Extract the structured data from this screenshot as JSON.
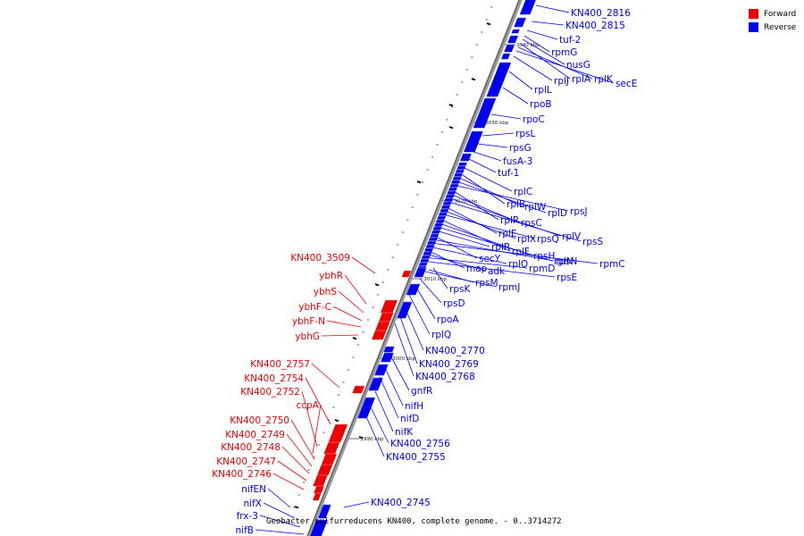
{
  "caption": "Geobacter sulfurreducens KN400, complete genome. - 0..3714272",
  "legend": [
    {
      "label": "Forward",
      "color": "#ee0000"
    },
    {
      "label": "Reverse",
      "color": "#0000ee"
    }
  ],
  "colors": {
    "forward": "#ee0000",
    "reverse": "#0000ee",
    "backbone": "#888888"
  },
  "ticks": [
    "3040 kbp",
    "3030 kbp",
    "3020 kbp",
    "3010 kbp",
    "3000 kbp",
    "2990 kbp"
  ],
  "reverse_labels": [
    "KN400_2816",
    "KN400_2815",
    "tuf-2",
    "rpmG",
    "nusG",
    "rplA",
    "rplK",
    "secE",
    "rplJ",
    "rplL",
    "rpoB",
    "rpoC",
    "rpsL",
    "rpsG",
    "fusA-3",
    "tuf-1",
    "rplC",
    "rplB",
    "rplW",
    "rplD",
    "rpsJ",
    "rplP",
    "rpsC",
    "rplV",
    "rpsS",
    "rplE",
    "rplX",
    "rpsQ",
    "rplF",
    "rpsH",
    "rplN",
    "rplR",
    "secY",
    "rpsN",
    "rpmC",
    "rplO",
    "map",
    "adk",
    "rpmD",
    "rpsE",
    "rpsK",
    "rpsM",
    "rpmJ",
    "rpsD",
    "rpoA",
    "rplQ",
    "KN400_2770",
    "KN400_2769",
    "KN400_2768",
    "gnfR",
    "nifH",
    "nifD",
    "nifK",
    "KN400_2756",
    "KN400_2755",
    "KN400_2745"
  ],
  "forward_labels": [
    "KN400_3509",
    "ybhR",
    "ybhS",
    "ybhF-C",
    "ybhF-N",
    "ybhG",
    "KN400_2757",
    "KN400_2754",
    "KN400_2752",
    "ccpA",
    "KN400_2750",
    "KN400_2749",
    "KN400_2748",
    "KN400_2747",
    "KN400_2746"
  ],
  "other_labels": [
    "nifEN",
    "nifX",
    "frx-3",
    "nifB"
  ]
}
